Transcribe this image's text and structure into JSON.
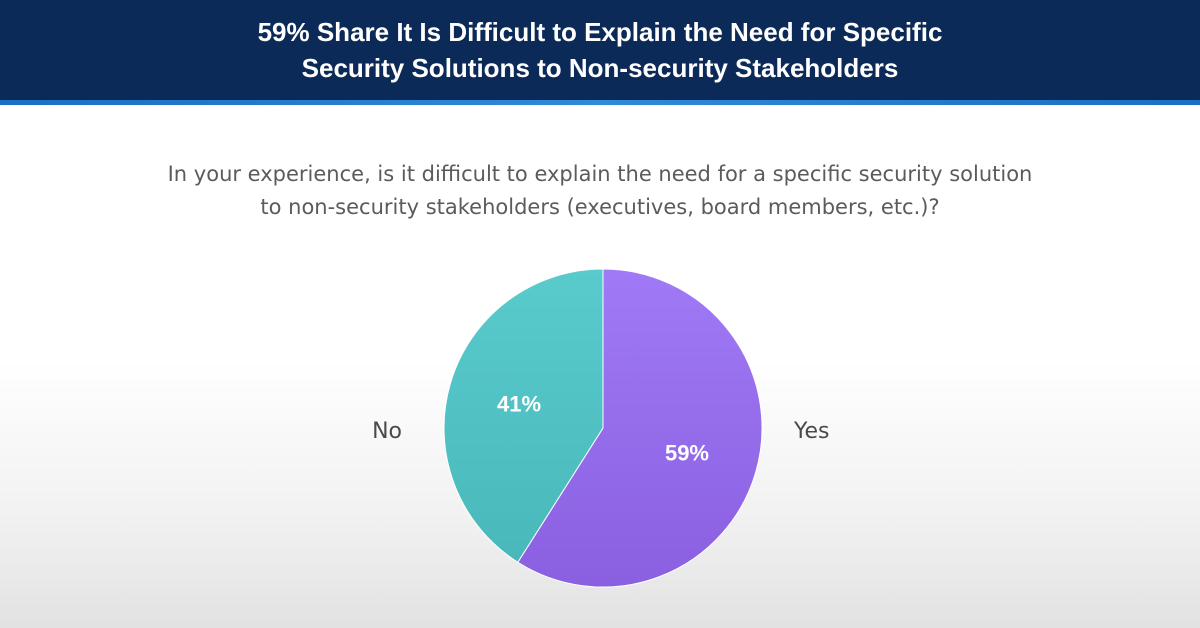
{
  "title": "59% Share It Is Difficult to Explain the Need for Specific\nSecurity Solutions to Non-security Stakeholders",
  "question": "In your experience, is it difficult to explain the need for a specific security solution\nto non-security stakeholders (executives, board members, etc.)?",
  "colors": {
    "banner": "#0c2a57",
    "yes": "#9b72f2",
    "no": "#53c5c8"
  },
  "chart_data": {
    "type": "pie",
    "slices": [
      {
        "label": "Yes",
        "value": 59,
        "value_label": "59%",
        "color": "#9b72f2"
      },
      {
        "label": "No",
        "value": 41,
        "value_label": "41%",
        "color": "#53c5c8"
      }
    ],
    "start": "12 o'clock",
    "direction": "clockwise"
  }
}
